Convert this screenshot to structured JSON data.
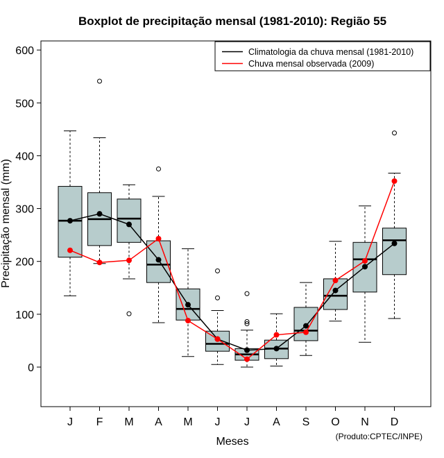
{
  "chart_data": {
    "type": "boxplot",
    "title": "Boxplot de precipitação mensal (1981-2010): Região 55",
    "xlabel": "Meses",
    "ylabel": "Precipitação mensal (mm)",
    "ylim": [
      -75,
      620
    ],
    "yticks": [
      0,
      100,
      200,
      300,
      400,
      500,
      600
    ],
    "categories": [
      "J",
      "F",
      "M",
      "A",
      "M",
      "J",
      "J",
      "A",
      "S",
      "O",
      "N",
      "D"
    ],
    "boxes": [
      {
        "month": "J",
        "whisker_low": 135,
        "q1": 208,
        "median": 277,
        "q3": 342,
        "whisker_high": 447,
        "outliers": []
      },
      {
        "month": "F",
        "whisker_low": 196,
        "q1": 230,
        "median": 280,
        "q3": 330,
        "whisker_high": 434,
        "outliers": [
          541
        ]
      },
      {
        "month": "M",
        "whisker_low": 167,
        "q1": 236,
        "median": 281,
        "q3": 318,
        "whisker_high": 345,
        "outliers": [
          101
        ]
      },
      {
        "month": "A",
        "whisker_low": 84,
        "q1": 160,
        "median": 194,
        "q3": 239,
        "whisker_high": 323,
        "outliers": [
          375
        ]
      },
      {
        "month": "M",
        "whisker_low": 20,
        "q1": 89,
        "median": 110,
        "q3": 148,
        "whisker_high": 224,
        "outliers": []
      },
      {
        "month": "J",
        "whisker_low": 5,
        "q1": 30,
        "median": 44,
        "q3": 68,
        "whisker_high": 107,
        "outliers": [
          131,
          182
        ]
      },
      {
        "month": "J",
        "whisker_low": 0,
        "q1": 13,
        "median": 24,
        "q3": 35,
        "whisker_high": 70,
        "outliers": [
          82,
          86,
          139
        ]
      },
      {
        "month": "A",
        "whisker_low": 2,
        "q1": 16,
        "median": 35,
        "q3": 51,
        "whisker_high": 101,
        "outliers": []
      },
      {
        "month": "S",
        "whisker_low": 22,
        "q1": 50,
        "median": 69,
        "q3": 113,
        "whisker_high": 160,
        "outliers": []
      },
      {
        "month": "O",
        "whisker_low": 87,
        "q1": 109,
        "median": 135,
        "q3": 167,
        "whisker_high": 238,
        "outliers": []
      },
      {
        "month": "N",
        "whisker_low": 47,
        "q1": 142,
        "median": 204,
        "q3": 236,
        "whisker_high": 305,
        "outliers": []
      },
      {
        "month": "D",
        "whisker_low": 92,
        "q1": 175,
        "median": 240,
        "q3": 263,
        "whisker_high": 367,
        "outliers": [
          443
        ]
      }
    ],
    "series": [
      {
        "name": "Climatologia da chuva mensal (1981-2010)",
        "color": "#000000",
        "values": [
          277,
          290,
          270,
          203,
          118,
          53,
          32,
          35,
          78,
          145,
          190,
          234
        ]
      },
      {
        "name": "Chuva mensal observada (2009)",
        "color": "#ff0000",
        "values": [
          221,
          198,
          202,
          243,
          88,
          53,
          15,
          61,
          66,
          164,
          201,
          352
        ]
      }
    ],
    "legend_position": "top-right",
    "box_fill": "#b7cccc",
    "credit": "(Produto:CPTEC/INPE)"
  }
}
